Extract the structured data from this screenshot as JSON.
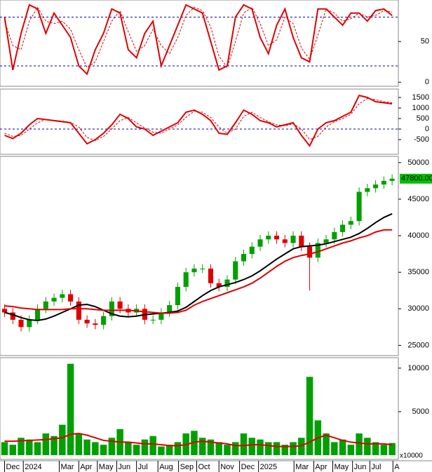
{
  "chart_data": [
    {
      "type": "line",
      "xlim": [
        -0.3,
        47.5
      ],
      "ylim": [
        -5,
        101
      ],
      "yticks": [
        0,
        50
      ],
      "reference_lines": [
        20,
        80
      ],
      "reference_color": "#0000c0",
      "x": [
        0,
        1,
        2,
        3,
        4,
        5,
        6,
        7,
        8,
        9,
        10,
        11,
        12,
        13,
        14,
        15,
        16,
        17,
        18,
        19,
        20,
        21,
        22,
        23,
        24,
        25,
        26,
        27,
        28,
        29,
        30,
        31,
        32,
        33,
        34,
        35,
        36,
        37,
        38,
        39,
        40,
        41,
        42,
        43,
        44,
        45,
        46,
        47
      ],
      "series": [
        {
          "color": "#e00000",
          "dash": false,
          "values": [
            80,
            15,
            60,
            95,
            90,
            60,
            85,
            70,
            55,
            20,
            10,
            40,
            60,
            90,
            85,
            40,
            30,
            60,
            75,
            20,
            45,
            70,
            95,
            90,
            85,
            50,
            15,
            20,
            80,
            95,
            90,
            55,
            35,
            70,
            90,
            55,
            30,
            25,
            90,
            90,
            80,
            70,
            85,
            85,
            75,
            88,
            90,
            82
          ]
        },
        {
          "color": "#e00000",
          "dash": true,
          "values": [
            75,
            45,
            40,
            75,
            92,
            75,
            72,
            75,
            65,
            40,
            18,
            25,
            50,
            75,
            88,
            62,
            38,
            45,
            65,
            45,
            35,
            55,
            82,
            92,
            88,
            68,
            32,
            18,
            50,
            85,
            92,
            72,
            45,
            52,
            80,
            72,
            42,
            28,
            58,
            90,
            85,
            75,
            78,
            85,
            80,
            82,
            88,
            86
          ]
        }
      ]
    },
    {
      "type": "line",
      "xlim": [
        -0.3,
        47.5
      ],
      "ylim": [
        -1200,
        1900
      ],
      "yticks": [
        -500,
        0,
        500,
        1000,
        1500
      ],
      "reference_lines": [
        0
      ],
      "reference_color": "#0000c0",
      "x": [
        0,
        1,
        2,
        3,
        4,
        5,
        6,
        7,
        8,
        9,
        10,
        11,
        12,
        13,
        14,
        15,
        16,
        17,
        18,
        19,
        20,
        21,
        22,
        23,
        24,
        25,
        26,
        27,
        28,
        29,
        30,
        31,
        32,
        33,
        34,
        35,
        36,
        37,
        38,
        39,
        40,
        41,
        42,
        43,
        44,
        45,
        46,
        47
      ],
      "series": [
        {
          "color": "#e00000",
          "dash": false,
          "values": [
            -300,
            -450,
            -200,
            200,
            500,
            450,
            400,
            350,
            300,
            -200,
            -700,
            -500,
            -200,
            200,
            700,
            500,
            100,
            0,
            -300,
            -100,
            100,
            300,
            800,
            900,
            700,
            400,
            -200,
            -250,
            300,
            900,
            700,
            400,
            300,
            100,
            200,
            300,
            -300,
            -800,
            0,
            300,
            400,
            600,
            800,
            1600,
            1500,
            1300,
            1250,
            1200
          ]
        },
        {
          "color": "#e00000",
          "dash": true,
          "values": [
            -200,
            -350,
            -300,
            0,
            300,
            450,
            420,
            380,
            320,
            100,
            -400,
            -550,
            -350,
            0,
            400,
            550,
            300,
            50,
            -150,
            -200,
            0,
            200,
            550,
            850,
            800,
            550,
            100,
            -200,
            0,
            600,
            800,
            550,
            350,
            200,
            150,
            250,
            0,
            -500,
            -350,
            100,
            350,
            500,
            700,
            1200,
            1450,
            1400,
            1300,
            1250
          ]
        }
      ]
    },
    {
      "type": "candlestick",
      "xlim": [
        -0.3,
        47.5
      ],
      "ylim": [
        23600,
        50850
      ],
      "yticks": [
        25000,
        30000,
        35000,
        40000,
        45000,
        50000
      ],
      "up_color": "#00a000",
      "down_color": "#e00000",
      "x": [
        0,
        1,
        2,
        3,
        4,
        5,
        6,
        7,
        8,
        9,
        10,
        11,
        12,
        13,
        14,
        15,
        16,
        17,
        18,
        19,
        20,
        21,
        22,
        23,
        24,
        25,
        26,
        27,
        28,
        29,
        30,
        31,
        32,
        33,
        34,
        35,
        36,
        37,
        38,
        39,
        40,
        41,
        42,
        43,
        44,
        45,
        46,
        47
      ],
      "open": [
        30000,
        29500,
        28500,
        27500,
        28500,
        30000,
        31000,
        31500,
        32000,
        31000,
        28500,
        28000,
        27800,
        29000,
        31000,
        30000,
        29500,
        30000,
        28500,
        28500,
        29500,
        30500,
        33000,
        35000,
        35500,
        35500,
        33500,
        33000,
        34000,
        36500,
        37500,
        38500,
        39500,
        40000,
        39500,
        39000,
        40000,
        38500,
        37000,
        39000,
        39500,
        40500,
        41500,
        42000,
        46000,
        46500,
        47000,
        47500
      ],
      "high": [
        30600,
        30100,
        29100,
        29100,
        30600,
        31600,
        32100,
        32600,
        32600,
        31600,
        29100,
        28600,
        29600,
        31600,
        31600,
        30600,
        30600,
        30600,
        29100,
        30100,
        31100,
        33600,
        35600,
        36100,
        36100,
        36100,
        34100,
        34600,
        37100,
        38100,
        39100,
        40100,
        40600,
        40600,
        40100,
        40600,
        40600,
        39100,
        39600,
        40100,
        41100,
        42100,
        42600,
        46600,
        47100,
        47600,
        48100,
        48400
      ],
      "low": [
        28900,
        27900,
        26900,
        26900,
        27900,
        29400,
        30400,
        30900,
        30400,
        27900,
        27400,
        27200,
        27200,
        28400,
        29400,
        28900,
        28900,
        27900,
        27900,
        27900,
        28900,
        29900,
        32400,
        34400,
        34900,
        32900,
        32400,
        32400,
        33400,
        35900,
        36900,
        37900,
        38900,
        38900,
        38400,
        38400,
        37900,
        32500,
        36400,
        38400,
        38900,
        39900,
        40900,
        41400,
        45400,
        45900,
        46400,
        46900
      ],
      "close": [
        29500,
        28500,
        27500,
        28500,
        30000,
        31000,
        31500,
        32000,
        31000,
        28500,
        28000,
        27800,
        29000,
        31000,
        30000,
        29500,
        30000,
        28500,
        28500,
        29500,
        30500,
        33000,
        35000,
        35500,
        35500,
        33500,
        33000,
        34000,
        36500,
        37500,
        38500,
        39500,
        40000,
        39500,
        39000,
        40000,
        38500,
        37000,
        39000,
        39500,
        40500,
        41500,
        42000,
        46000,
        46500,
        47000,
        47500,
        47800
      ],
      "series": [
        {
          "color": "#000000",
          "values": [
            29500,
            29200,
            28800,
            28500,
            28400,
            28600,
            29000,
            29500,
            30000,
            30500,
            30600,
            30300,
            29800,
            29300,
            29000,
            28900,
            29000,
            29200,
            29300,
            29400,
            29500,
            29700,
            30200,
            31000,
            31800,
            32500,
            33000,
            33300,
            33600,
            34000,
            34500,
            35200,
            36000,
            36800,
            37500,
            38200,
            38500,
            38600,
            38700,
            38900,
            39200,
            39500,
            39800,
            40300,
            41000,
            41800,
            42500,
            43000
          ]
        },
        {
          "color": "#e00000",
          "values": [
            30400,
            30300,
            30100,
            30000,
            29900,
            29900,
            29900,
            29900,
            30000,
            30000,
            30000,
            29900,
            29800,
            29800,
            29800,
            29800,
            29700,
            29600,
            29500,
            29400,
            29400,
            29500,
            29800,
            30500,
            31000,
            31400,
            31800,
            32200,
            32600,
            33000,
            33500,
            34200,
            35000,
            35800,
            36500,
            37000,
            37300,
            37500,
            37800,
            38200,
            38600,
            39000,
            39300,
            39700,
            40000,
            40500,
            40800,
            40800
          ]
        }
      ],
      "last_price": {
        "value": 47800,
        "label": "47800.00",
        "color": "#00c000"
      }
    },
    {
      "type": "bar",
      "xlim": [
        -0.3,
        47.5
      ],
      "ylim": [
        -480,
        11200
      ],
      "yticks": [
        5000,
        10000
      ],
      "y_unit": "x10000",
      "color": "#00a000",
      "x": [
        0,
        1,
        2,
        3,
        4,
        5,
        6,
        7,
        8,
        9,
        10,
        11,
        12,
        13,
        14,
        15,
        16,
        17,
        18,
        19,
        20,
        21,
        22,
        23,
        24,
        25,
        26,
        27,
        28,
        29,
        30,
        31,
        32,
        33,
        34,
        35,
        36,
        37,
        38,
        39,
        40,
        41,
        42,
        43,
        44,
        45,
        46,
        47
      ],
      "values": [
        1500,
        1200,
        2000,
        1800,
        1500,
        2500,
        2200,
        3500,
        10500,
        2500,
        1800,
        1500,
        1200,
        2000,
        3000,
        1500,
        1200,
        1800,
        2200,
        1000,
        1200,
        1500,
        2500,
        2800,
        2000,
        1800,
        1500,
        1200,
        1500,
        2500,
        2000,
        1800,
        1500,
        1500,
        1200,
        1500,
        2000,
        9000,
        4000,
        2500,
        1500,
        1800,
        1200,
        2500,
        2000,
        1500,
        1200,
        1400
      ],
      "series": [
        {
          "color": "#e00000",
          "values": [
            1600,
            1600,
            1650,
            1700,
            1750,
            1800,
            1900,
            2000,
            2400,
            2500,
            2300,
            2000,
            1700,
            1600,
            1500,
            1500,
            1400,
            1300,
            1300,
            1200,
            1100,
            1100,
            1200,
            1500,
            1600,
            1500,
            1400,
            1300,
            1100,
            1100,
            1200,
            1200,
            1100,
            1000,
            1000,
            1000,
            1100,
            1500,
            2000,
            2300,
            2000,
            1700,
            1500,
            1400,
            1300,
            1300,
            1300,
            1200
          ]
        }
      ],
      "xticks": [
        {
          "value": 0,
          "label": "Dec"
        },
        {
          "value": 2.27,
          "label": "2024"
        },
        {
          "value": 6.63,
          "label": "Mar"
        },
        {
          "value": 9.0,
          "label": "Apr"
        },
        {
          "value": 11.25,
          "label": "May"
        },
        {
          "value": 13.6,
          "label": "Jun"
        },
        {
          "value": 16.0,
          "label": "Jul"
        },
        {
          "value": 18.6,
          "label": "Aug"
        },
        {
          "value": 21.1,
          "label": "Sep"
        },
        {
          "value": 23.3,
          "label": "Oct"
        },
        {
          "value": 26.0,
          "label": "Nov"
        },
        {
          "value": 28.5,
          "label": "Dec"
        },
        {
          "value": 30.8,
          "label": "2025"
        },
        {
          "value": 35.1,
          "label": "Mar"
        },
        {
          "value": 37.5,
          "label": "Apr"
        },
        {
          "value": 39.8,
          "label": "May"
        },
        {
          "value": 42.2,
          "label": "Jun"
        },
        {
          "value": 44.3,
          "label": "Jul"
        },
        {
          "value": 47.1,
          "label": "A"
        }
      ]
    }
  ]
}
